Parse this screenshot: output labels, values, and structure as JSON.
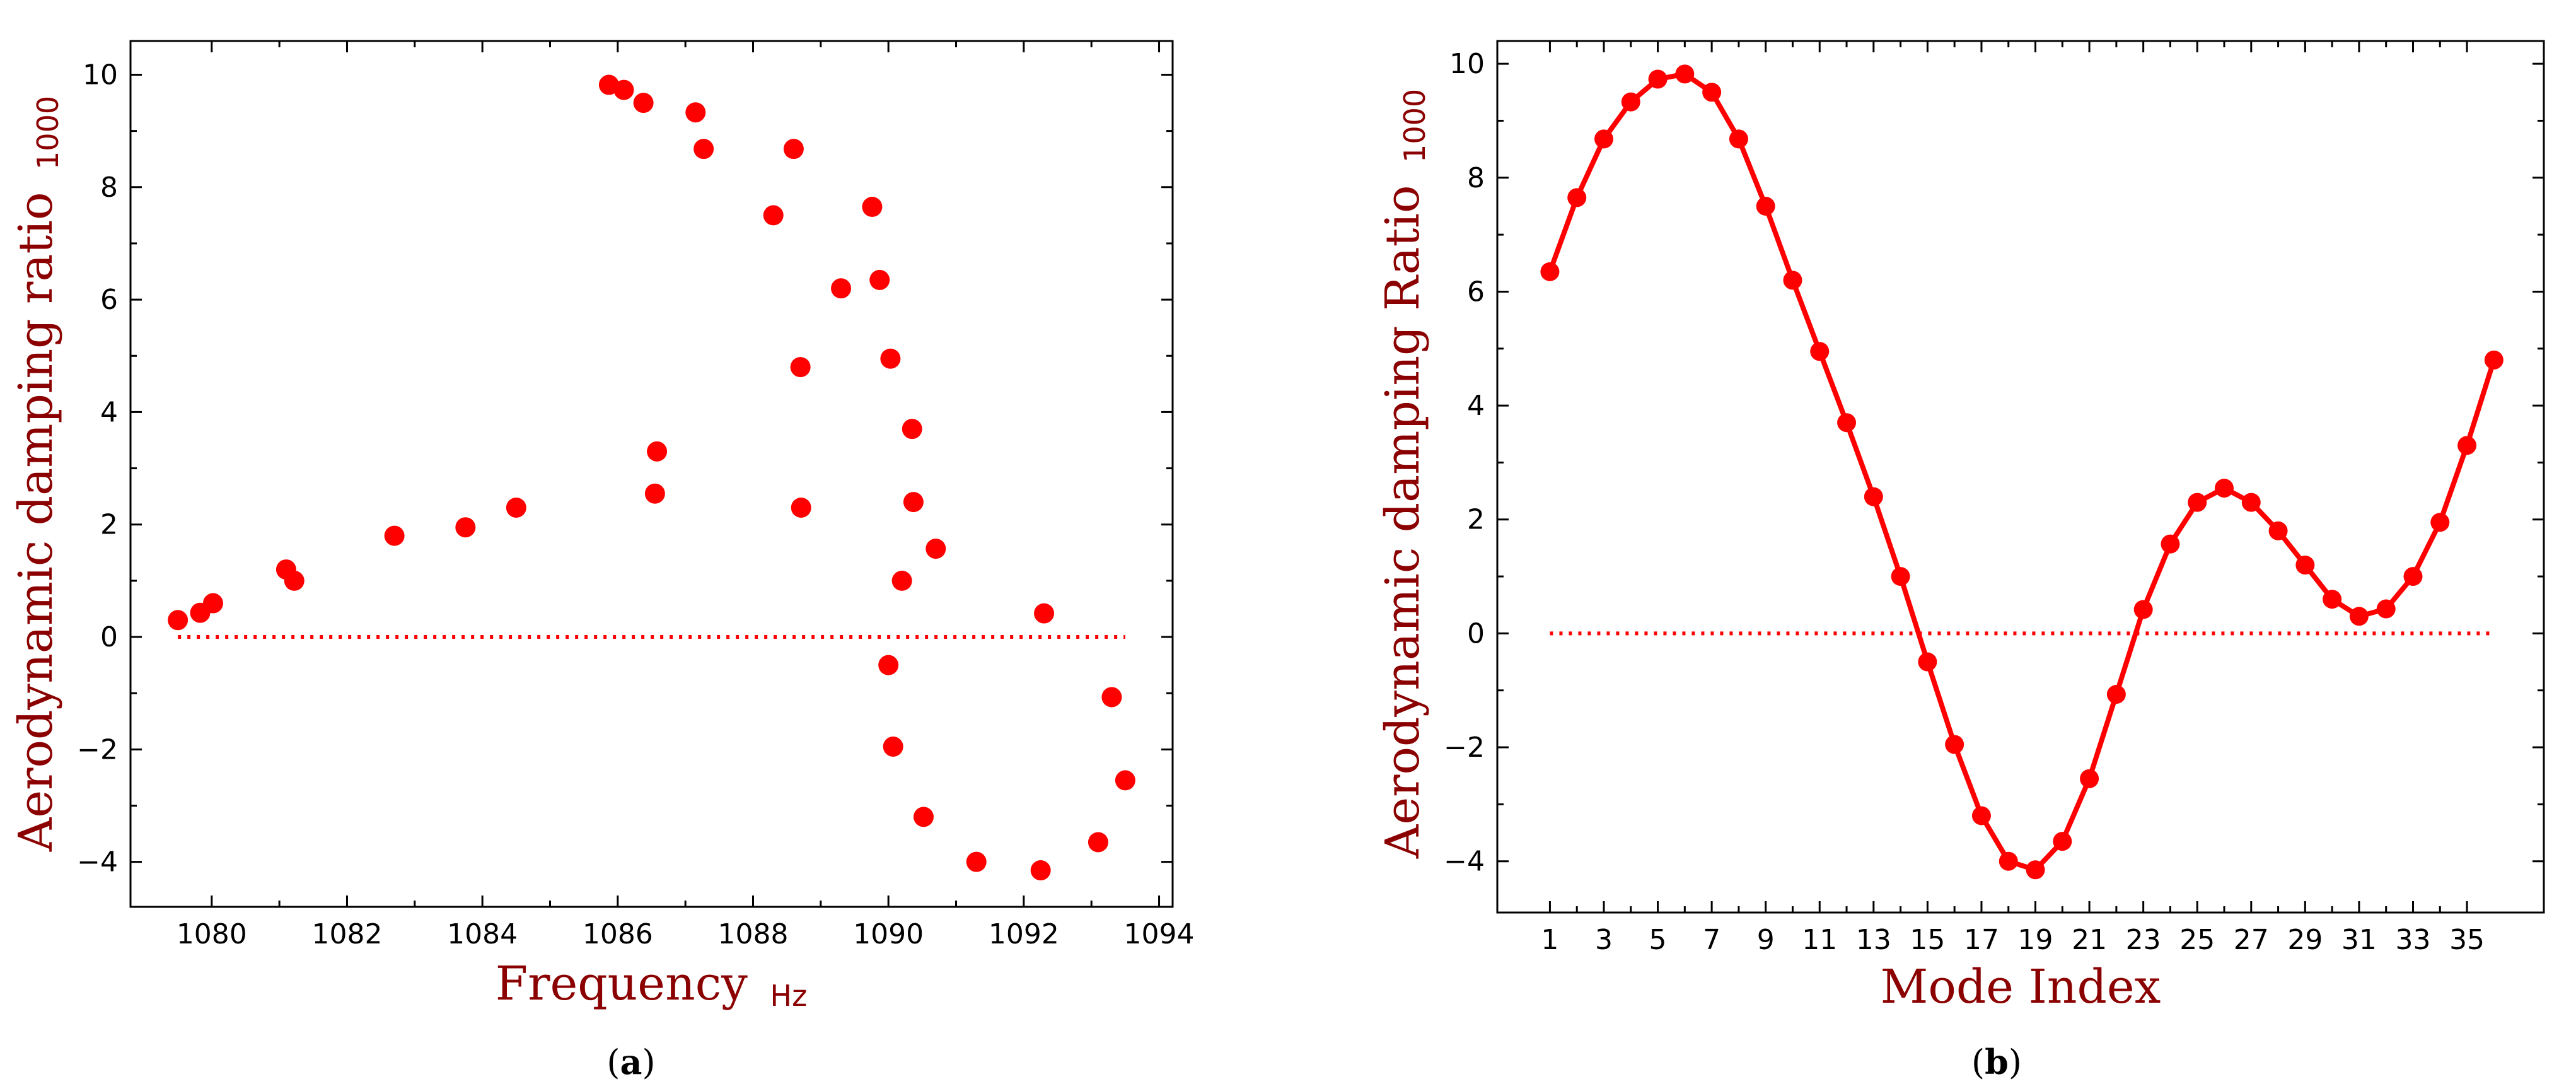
{
  "colors": {
    "series": "#ff0000",
    "axis_label": "#8b0000",
    "axes": "#000000"
  },
  "chart_data": [
    {
      "id": "a",
      "type": "scatter",
      "caption": "a",
      "xlabel": "Frequency",
      "xlabel_unit": "Hz",
      "ylabel": "Aerodynamic damping ratio",
      "ylabel_unit": "1000",
      "xlim": [
        1078.8,
        1094.2
      ],
      "ylim": [
        -4.8,
        10.6
      ],
      "xticks": [
        1080,
        1082,
        1084,
        1086,
        1088,
        1090,
        1092,
        1094
      ],
      "yticks": [
        -4,
        -2,
        0,
        2,
        4,
        6,
        8,
        10
      ],
      "reference_line": {
        "y": 0,
        "x_from": 1079.5,
        "x_to": 1093.5
      },
      "points": [
        {
          "x": 1079.5,
          "y": 0.3
        },
        {
          "x": 1079.83,
          "y": 0.43
        },
        {
          "x": 1080.02,
          "y": 0.6
        },
        {
          "x": 1081.1,
          "y": 1.2
        },
        {
          "x": 1081.22,
          "y": 1.0
        },
        {
          "x": 1082.7,
          "y": 1.8
        },
        {
          "x": 1083.75,
          "y": 1.95
        },
        {
          "x": 1084.5,
          "y": 2.3
        },
        {
          "x": 1085.87,
          "y": 9.82
        },
        {
          "x": 1086.09,
          "y": 9.73
        },
        {
          "x": 1086.38,
          "y": 9.5
        },
        {
          "x": 1086.55,
          "y": 2.55
        },
        {
          "x": 1086.58,
          "y": 3.3
        },
        {
          "x": 1087.15,
          "y": 9.33
        },
        {
          "x": 1087.27,
          "y": 8.68
        },
        {
          "x": 1088.3,
          "y": 7.5
        },
        {
          "x": 1088.6,
          "y": 8.68
        },
        {
          "x": 1088.7,
          "y": 4.8
        },
        {
          "x": 1088.71,
          "y": 2.3
        },
        {
          "x": 1089.3,
          "y": 6.2
        },
        {
          "x": 1089.76,
          "y": 7.65
        },
        {
          "x": 1089.87,
          "y": 6.35
        },
        {
          "x": 1090.0,
          "y": -0.5
        },
        {
          "x": 1090.03,
          "y": 4.95
        },
        {
          "x": 1090.07,
          "y": -1.95
        },
        {
          "x": 1090.2,
          "y": 1.0
        },
        {
          "x": 1090.35,
          "y": 3.7
        },
        {
          "x": 1090.37,
          "y": 2.4
        },
        {
          "x": 1090.52,
          "y": -3.2
        },
        {
          "x": 1090.7,
          "y": 1.57
        },
        {
          "x": 1091.3,
          "y": -4.0
        },
        {
          "x": 1092.25,
          "y": -4.15
        },
        {
          "x": 1092.3,
          "y": 0.42
        },
        {
          "x": 1093.1,
          "y": -3.65
        },
        {
          "x": 1093.3,
          "y": -1.07
        },
        {
          "x": 1093.5,
          "y": -2.55
        }
      ]
    },
    {
      "id": "b",
      "type": "line",
      "caption": "b",
      "xlabel": "Mode Index",
      "ylabel": "Aerodynamic damping Ratio",
      "ylabel_unit": "1000",
      "xlim": [
        -0.95,
        37.85
      ],
      "ylim": [
        -4.9,
        10.4
      ],
      "xticks": [
        1,
        3,
        5,
        7,
        9,
        11,
        13,
        15,
        17,
        19,
        21,
        23,
        25,
        27,
        29,
        31,
        33,
        35
      ],
      "yticks": [
        -4,
        -2,
        0,
        2,
        4,
        6,
        8,
        10
      ],
      "reference_line": {
        "y": 0,
        "x_from": 1,
        "x_to": 36
      },
      "x": [
        1,
        2,
        3,
        4,
        5,
        6,
        7,
        8,
        9,
        10,
        11,
        12,
        13,
        14,
        15,
        16,
        17,
        18,
        19,
        20,
        21,
        22,
        23,
        24,
        25,
        26,
        27,
        28,
        29,
        30,
        31,
        32,
        33,
        34,
        35,
        36
      ],
      "values": [
        6.35,
        7.65,
        8.68,
        9.33,
        9.73,
        9.82,
        9.5,
        8.68,
        7.5,
        6.2,
        4.95,
        3.7,
        2.4,
        1.0,
        -0.5,
        -1.95,
        -3.2,
        -4.0,
        -4.15,
        -3.65,
        -2.55,
        -1.07,
        0.42,
        1.57,
        2.3,
        2.55,
        2.3,
        1.8,
        1.2,
        0.6,
        0.3,
        0.43,
        1.0,
        1.95,
        3.3,
        4.8
      ]
    }
  ]
}
